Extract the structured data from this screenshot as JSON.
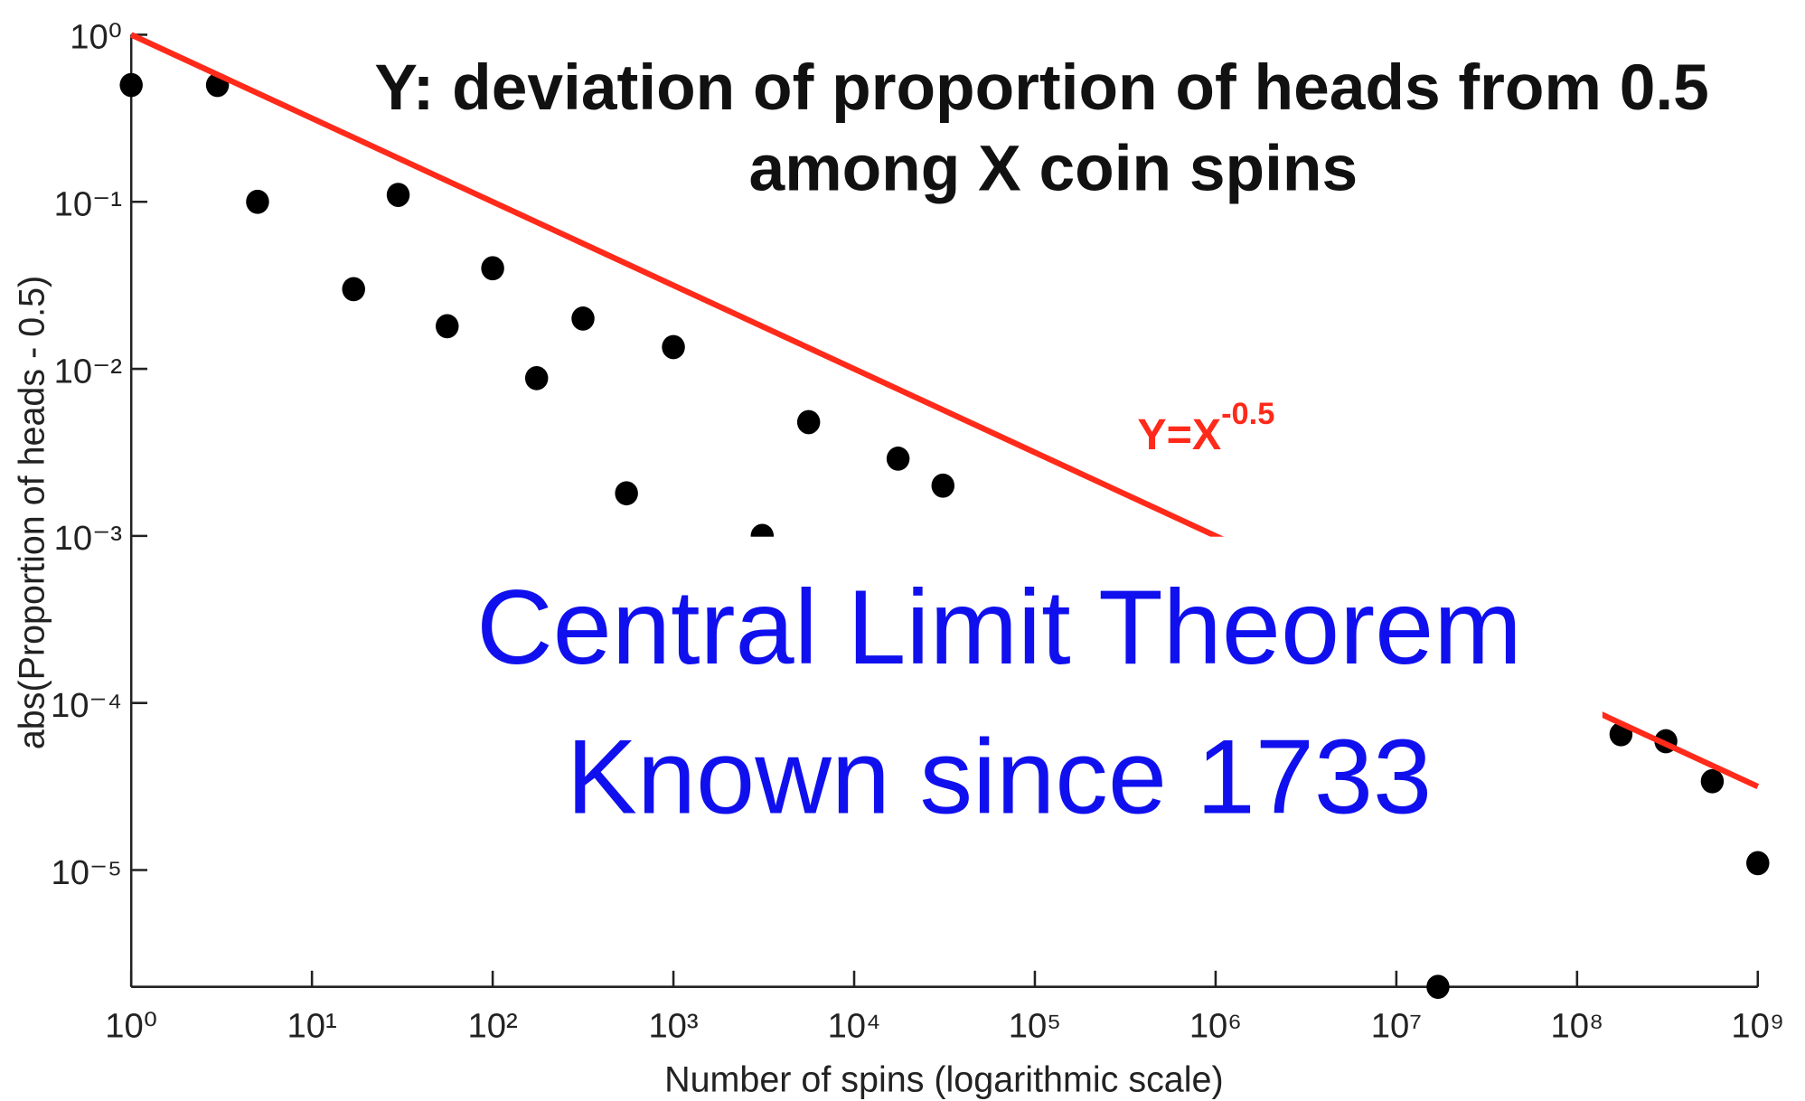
{
  "chart_data": {
    "type": "scatter",
    "title": [
      "Y: deviation of proportion of heads from 0.5",
      "among X coin spins"
    ],
    "xlabel": "Number of spins (logarithmic scale)",
    "ylabel": "abs(Proportion of heads - 0.5)",
    "annotation": {
      "base": "Y=X",
      "exponent": "-0.5"
    },
    "overlay": [
      "Central Limit Theorem",
      "Known since 1733"
    ],
    "xscale": "log",
    "yscale": "log",
    "xlim": [
      1,
      1000000000
    ],
    "ylim": [
      2e-06,
      1
    ],
    "xticks": [
      {
        "value": 1,
        "label": "10⁰"
      },
      {
        "value": 10,
        "label": "10¹"
      },
      {
        "value": 100,
        "label": "10²"
      },
      {
        "value": 1000,
        "label": "10³"
      },
      {
        "value": 10000,
        "label": "10⁴"
      },
      {
        "value": 100000,
        "label": "10⁵"
      },
      {
        "value": 1000000,
        "label": "10⁶"
      },
      {
        "value": 10000000,
        "label": "10⁷"
      },
      {
        "value": 100000000,
        "label": "10⁸"
      },
      {
        "value": 1000000000,
        "label": "10⁹"
      }
    ],
    "yticks": [
      {
        "value": 1,
        "label": "10⁰"
      },
      {
        "value": 0.1,
        "label": "10⁻¹"
      },
      {
        "value": 0.01,
        "label": "10⁻²"
      },
      {
        "value": 0.001,
        "label": "10⁻³"
      },
      {
        "value": 0.0001,
        "label": "10⁻⁴"
      },
      {
        "value": 1e-05,
        "label": "10⁻⁵"
      }
    ],
    "series": [
      {
        "type": "scatter",
        "color": "#000000",
        "x": [
          1,
          3,
          5,
          17,
          30,
          56,
          100,
          175,
          316,
          550,
          1000,
          3100,
          5600,
          17500,
          31000,
          17000000,
          175000000,
          310000000,
          560000000,
          1000000000
        ],
        "values": [
          0.5,
          0.5,
          0.1,
          0.03,
          0.11,
          0.018,
          0.04,
          0.0088,
          0.02,
          0.0018,
          0.0135,
          0.001,
          0.0048,
          0.0029,
          0.002,
          2e-06,
          6.5e-05,
          5.9e-05,
          3.4e-05,
          1.1e-05
        ]
      },
      {
        "type": "line",
        "color": "#ff2a1a",
        "x": [
          1,
          1000000000
        ],
        "values": [
          1,
          3.16e-05
        ]
      }
    ]
  }
}
